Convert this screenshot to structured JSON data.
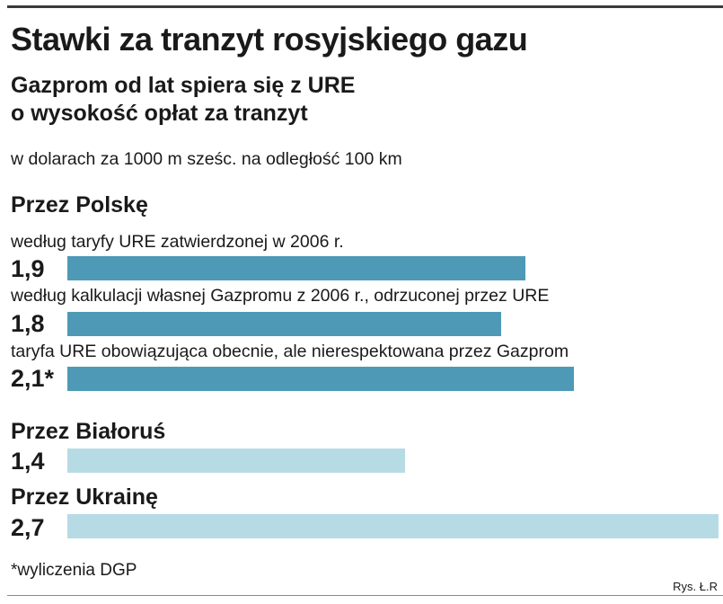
{
  "chart_data": {
    "type": "bar",
    "orientation": "horizontal",
    "title": "Stawki za tranzyt rosyjskiego gazu",
    "subtitle_lines": [
      "Gazprom od lat spiera się z URE",
      "o wysokość opłat za tranzyt"
    ],
    "unit": "w dolarach za 1000 m sześc. na odległość 100 km",
    "groups": [
      {
        "label": "Przez Polskę",
        "bars": [
          {
            "description": "według taryfy URE zatwierdzonej w 2006 r.",
            "value": 1.9,
            "label": "1,9",
            "color": "#4e9ab6"
          },
          {
            "description": "według kalkulacji własnej Gazpromu z 2006 r., odrzuconej przez URE",
            "value": 1.8,
            "label": "1,8",
            "color": "#4e9ab6"
          },
          {
            "description": "taryfa URE obowiązująca obecnie, ale nierespektowana przez Gazprom",
            "value": 2.1,
            "label": "2,1*",
            "color": "#4e9ab6"
          }
        ]
      },
      {
        "label": "Przez Białoruś",
        "bars": [
          {
            "description": "",
            "value": 1.4,
            "label": "1,4",
            "color": "#b7dbe5"
          }
        ]
      },
      {
        "label": "Przez Ukrainę",
        "bars": [
          {
            "description": "",
            "value": 2.7,
            "label": "2,7",
            "color": "#b7dbe5"
          }
        ]
      }
    ],
    "footnote": "*wyliczenia DGP",
    "credit": "Rys. Ł.R"
  }
}
